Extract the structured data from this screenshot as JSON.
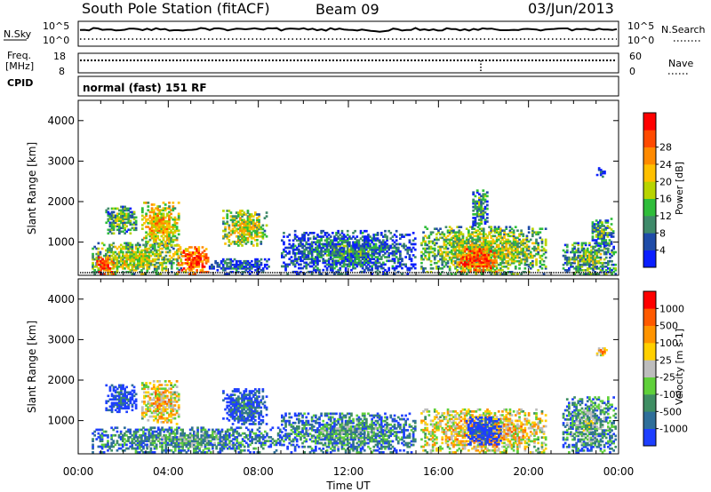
{
  "header": {
    "station": "South Pole Station (fitACF)",
    "beam": "Beam 09",
    "date": "03/Jun/2013"
  },
  "top_panels": {
    "nsky_label": "N.Sky",
    "nsky_ticks": [
      "10^5",
      "10^0"
    ],
    "nsearch_label": "N.Search",
    "nsearch_ticks": [
      "10^5",
      "10^0"
    ],
    "freq_label_1": "Freq.",
    "freq_label_2": "[MHz]",
    "freq_ticks": [
      "18",
      "8"
    ],
    "nave_label": "Nave",
    "nave_ticks": [
      "60",
      "0"
    ],
    "cpid_label": "CPID",
    "cpid_text": "normal (fast) 151 RF"
  },
  "chart_data": [
    {
      "type": "heatmap",
      "name": "power",
      "ylabel": "Slant Range [km]",
      "ylim": [
        180,
        4500
      ],
      "yticks": [
        1000,
        2000,
        3000,
        4000
      ],
      "xlim": [
        0,
        24
      ],
      "colorbar_label": "Power [dB]",
      "colorbar_ticks": [
        "4",
        "8",
        "12",
        "16",
        "20",
        "24",
        "28"
      ],
      "colorbar_colors": [
        "#0a1eff",
        "#1f4ca8",
        "#3f8a6a",
        "#2fbd3a",
        "#b8d400",
        "#ffc000",
        "#ff8a00",
        "#ff4a00",
        "#ff0000"
      ],
      "regions": [
        {
          "t0": 0.6,
          "t1": 4.6,
          "r0": 200,
          "r1": 1000,
          "level": 0.55
        },
        {
          "t0": 0.8,
          "t1": 1.6,
          "r0": 200,
          "r1": 650,
          "level": 0.95
        },
        {
          "t0": 1.2,
          "t1": 2.6,
          "r0": 1200,
          "r1": 1900,
          "level": 0.45
        },
        {
          "t0": 2.8,
          "t1": 4.5,
          "r0": 900,
          "r1": 2000,
          "level": 0.7
        },
        {
          "t0": 4.4,
          "t1": 5.8,
          "r0": 200,
          "r1": 900,
          "level": 0.9
        },
        {
          "t0": 6.4,
          "t1": 8.4,
          "r0": 900,
          "r1": 1800,
          "level": 0.6
        },
        {
          "t0": 5.8,
          "t1": 8.5,
          "r0": 200,
          "r1": 600,
          "level": 0.25
        },
        {
          "t0": 9.0,
          "t1": 15.0,
          "r0": 200,
          "r1": 1300,
          "level": 0.3
        },
        {
          "t0": 15.2,
          "t1": 20.8,
          "r0": 200,
          "r1": 1400,
          "level": 0.55
        },
        {
          "t0": 16.8,
          "t1": 18.6,
          "r0": 250,
          "r1": 850,
          "level": 0.92
        },
        {
          "t0": 17.5,
          "t1": 18.2,
          "r0": 1400,
          "r1": 2300,
          "level": 0.4
        },
        {
          "t0": 21.5,
          "t1": 23.9,
          "r0": 200,
          "r1": 1000,
          "level": 0.45
        },
        {
          "t0": 22.8,
          "t1": 23.8,
          "r0": 900,
          "r1": 1600,
          "level": 0.4
        },
        {
          "t0": 23.0,
          "t1": 23.5,
          "r0": 2600,
          "r1": 2850,
          "level": 0.2
        }
      ]
    },
    {
      "type": "heatmap",
      "name": "velocity",
      "ylabel": "Slant Range [km]",
      "ylim": [
        180,
        4500
      ],
      "yticks": [
        1000,
        2000,
        3000,
        4000
      ],
      "xlim": [
        0,
        24
      ],
      "xticks": [
        "00:00",
        "04:00",
        "08:00",
        "12:00",
        "16:00",
        "20:00",
        "00:00"
      ],
      "xlabel": "Time UT",
      "colorbar_label": "Velocity [m s-1]",
      "colorbar_ticks": [
        "1000",
        "500",
        "100",
        "25",
        "-25",
        "-100",
        "-500",
        "-1000"
      ],
      "colorbar_colors": [
        "#1e3fff",
        "#2f6f9a",
        "#3f8e63",
        "#5fd03a",
        "#bdbdbd",
        "#ffd000",
        "#ff9400",
        "#ff5a00",
        "#ff0000"
      ],
      "regions": [
        {
          "t0": 0.6,
          "t1": 9.0,
          "r0": 200,
          "r1": 850,
          "level": 0.35
        },
        {
          "t0": 1.2,
          "t1": 2.6,
          "r0": 1200,
          "r1": 1900,
          "level": 0.15
        },
        {
          "t0": 2.8,
          "t1": 4.5,
          "r0": 900,
          "r1": 2000,
          "level": 0.7
        },
        {
          "t0": 6.4,
          "t1": 8.4,
          "r0": 900,
          "r1": 1800,
          "level": 0.2
        },
        {
          "t0": 9.0,
          "t1": 15.0,
          "r0": 200,
          "r1": 1200,
          "level": 0.35
        },
        {
          "t0": 15.2,
          "t1": 20.8,
          "r0": 200,
          "r1": 1300,
          "level": 0.7
        },
        {
          "t0": 17.2,
          "t1": 18.8,
          "r0": 400,
          "r1": 1100,
          "level": 0.1
        },
        {
          "t0": 21.5,
          "t1": 23.9,
          "r0": 200,
          "r1": 1600,
          "level": 0.4
        },
        {
          "t0": 23.0,
          "t1": 23.5,
          "r0": 2600,
          "r1": 2850,
          "level": 0.75
        }
      ]
    }
  ]
}
